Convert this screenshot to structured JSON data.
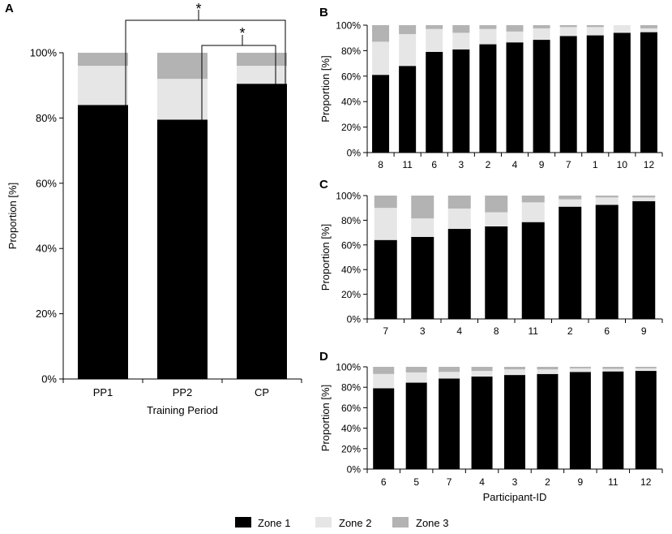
{
  "colors": {
    "zone1": "#000000",
    "zone2": "#e6e6e6",
    "zone3": "#b3b3b3",
    "axis": "#000000"
  },
  "legend": [
    "Zone 1",
    "Zone 2",
    "Zone 3"
  ],
  "significance": {
    "marker_top": "*",
    "marker_inner": "*"
  },
  "chart_data": [
    {
      "panel": "A",
      "type": "bar",
      "stacked": true,
      "title": "",
      "xlabel": "Training Period",
      "ylabel": "Proportion [%]",
      "ylim": [
        0,
        100
      ],
      "yticks": [
        0,
        20,
        40,
        60,
        80,
        100
      ],
      "categories": [
        "PP1",
        "PP2",
        "CP"
      ],
      "series": [
        {
          "name": "Zone 1",
          "values": [
            84,
            79.5,
            90.5
          ]
        },
        {
          "name": "Zone 2",
          "values": [
            12,
            12.5,
            5.5
          ]
        },
        {
          "name": "Zone 3",
          "values": [
            4,
            8,
            4
          ]
        }
      ],
      "annotations": [
        "* PP1 vs CP",
        "* PP2 vs CP"
      ]
    },
    {
      "panel": "B",
      "type": "bar",
      "stacked": true,
      "xlabel": "",
      "ylabel": "Proportion [%]",
      "ylim": [
        0,
        100
      ],
      "yticks": [
        0,
        20,
        40,
        60,
        80,
        100
      ],
      "categories": [
        "8",
        "11",
        "6",
        "3",
        "2",
        "4",
        "9",
        "7",
        "1",
        "10",
        "12"
      ],
      "series": [
        {
          "name": "Zone 1",
          "values": [
            61,
            68,
            79,
            81,
            85,
            86.5,
            88.5,
            91.5,
            92,
            94,
            94.5
          ]
        },
        {
          "name": "Zone 2",
          "values": [
            26,
            25,
            18,
            13,
            12,
            8.5,
            9,
            7,
            6.5,
            6,
            3
          ]
        },
        {
          "name": "Zone 3",
          "values": [
            13,
            7,
            3,
            6,
            3,
            5,
            2.5,
            1.5,
            1.5,
            0,
            2.5
          ]
        }
      ]
    },
    {
      "panel": "C",
      "type": "bar",
      "stacked": true,
      "xlabel": "",
      "ylabel": "Proportion  [%]",
      "ylim": [
        0,
        100
      ],
      "yticks": [
        0,
        20,
        40,
        60,
        80,
        100
      ],
      "categories": [
        "7",
        "3",
        "4",
        "8",
        "11",
        "2",
        "6",
        "9"
      ],
      "series": [
        {
          "name": "Zone 1",
          "values": [
            64,
            66.5,
            73,
            75,
            78.5,
            91,
            92.5,
            95.5
          ]
        },
        {
          "name": "Zone 2",
          "values": [
            26,
            15,
            16.5,
            11.5,
            16,
            6,
            6,
            3
          ]
        },
        {
          "name": "Zone 3",
          "values": [
            10,
            18.5,
            10.5,
            13.5,
            5.5,
            3,
            1.5,
            1.5
          ]
        }
      ]
    },
    {
      "panel": "D",
      "type": "bar",
      "stacked": true,
      "xlabel": "Participant-ID",
      "ylabel": "Proportion [%]",
      "ylim": [
        0,
        100
      ],
      "yticks": [
        0,
        20,
        40,
        60,
        80,
        100
      ],
      "categories": [
        "6",
        "5",
        "7",
        "4",
        "3",
        "2",
        "9",
        "11",
        "12"
      ],
      "series": [
        {
          "name": "Zone 1",
          "values": [
            79,
            84.5,
            88.5,
            90.5,
            92,
            93,
            95,
            95.5,
            96
          ]
        },
        {
          "name": "Zone 2",
          "values": [
            14,
            10,
            6.5,
            5.5,
            5.5,
            4.5,
            3.5,
            2.5,
            2.5
          ]
        },
        {
          "name": "Zone 3",
          "values": [
            7,
            5.5,
            5,
            4,
            2.5,
            2.5,
            1.5,
            2,
            1.5
          ]
        }
      ]
    }
  ]
}
